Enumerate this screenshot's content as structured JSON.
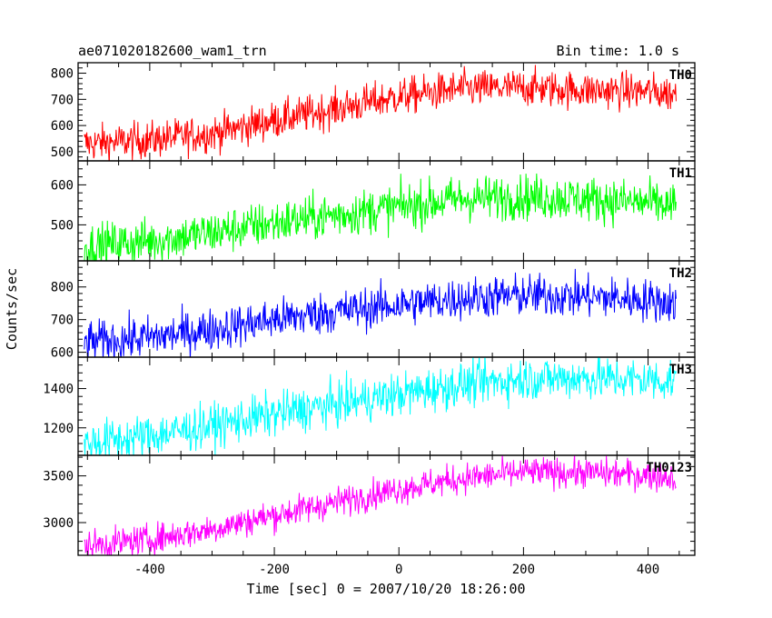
{
  "title": "ae071020182600_wam1_trn",
  "bin_time": "Bin time: 1.0 s",
  "xlabel": "Time [sec] 0 = 2007/10/20 18:26:00",
  "ylabel": "Counts/sec",
  "chart_data": {
    "type": "line",
    "title": "ae071020182600_wam1_trn",
    "xlabel": "Time [sec] 0 = 2007/10/20 18:26:00",
    "ylabel": "Counts/sec",
    "xlim": [
      -515,
      475
    ],
    "x_ticks": [
      -400,
      -200,
      0,
      200,
      400
    ],
    "x_range": [
      -505,
      445
    ],
    "bin_time_s": 1.0,
    "legend": "none",
    "grid": false,
    "panels": [
      {
        "name": "TH0",
        "color": "#ff0000",
        "ylim": [
          465,
          840
        ],
        "y_ticks": [
          500,
          600,
          700,
          800
        ],
        "noise": 35,
        "trend": [
          [
            -505,
            530
          ],
          [
            -400,
            545
          ],
          [
            -300,
            570
          ],
          [
            -200,
            620
          ],
          [
            -100,
            665
          ],
          [
            0,
            710
          ],
          [
            100,
            740
          ],
          [
            200,
            745
          ],
          [
            300,
            735
          ],
          [
            400,
            730
          ],
          [
            445,
            720
          ]
        ]
      },
      {
        "name": "TH1",
        "color": "#00ff00",
        "ylim": [
          410,
          660
        ],
        "y_ticks": [
          500,
          600
        ],
        "noise": 28,
        "trend": [
          [
            -505,
            445
          ],
          [
            -400,
            460
          ],
          [
            -300,
            480
          ],
          [
            -200,
            505
          ],
          [
            -100,
            525
          ],
          [
            0,
            545
          ],
          [
            100,
            565
          ],
          [
            200,
            570
          ],
          [
            300,
            565
          ],
          [
            400,
            555
          ],
          [
            445,
            545
          ]
        ]
      },
      {
        "name": "TH2",
        "color": "#0000ff",
        "ylim": [
          585,
          880
        ],
        "y_ticks": [
          600,
          700,
          800
        ],
        "noise": 32,
        "trend": [
          [
            -505,
            630
          ],
          [
            -400,
            645
          ],
          [
            -300,
            670
          ],
          [
            -200,
            700
          ],
          [
            -100,
            725
          ],
          [
            0,
            745
          ],
          [
            100,
            765
          ],
          [
            200,
            775
          ],
          [
            300,
            770
          ],
          [
            400,
            760
          ],
          [
            445,
            750
          ]
        ]
      },
      {
        "name": "TH3",
        "color": "#00ffff",
        "ylim": [
          1060,
          1560
        ],
        "y_ticks": [
          1200,
          1400
        ],
        "noise": 55,
        "trend": [
          [
            -505,
            1120
          ],
          [
            -400,
            1160
          ],
          [
            -300,
            1210
          ],
          [
            -200,
            1270
          ],
          [
            -100,
            1320
          ],
          [
            0,
            1370
          ],
          [
            100,
            1420
          ],
          [
            200,
            1450
          ],
          [
            300,
            1455
          ],
          [
            400,
            1445
          ],
          [
            445,
            1440
          ]
        ]
      },
      {
        "name": "TH0123",
        "color": "#ff00ff",
        "ylim": [
          2650,
          3720
        ],
        "y_ticks": [
          3000,
          3500
        ],
        "noise": 80,
        "trend": [
          [
            -505,
            2750
          ],
          [
            -400,
            2820
          ],
          [
            -300,
            2930
          ],
          [
            -200,
            3080
          ],
          [
            -100,
            3220
          ],
          [
            0,
            3360
          ],
          [
            100,
            3470
          ],
          [
            200,
            3540
          ],
          [
            300,
            3535
          ],
          [
            400,
            3510
          ],
          [
            445,
            3480
          ]
        ]
      }
    ]
  }
}
